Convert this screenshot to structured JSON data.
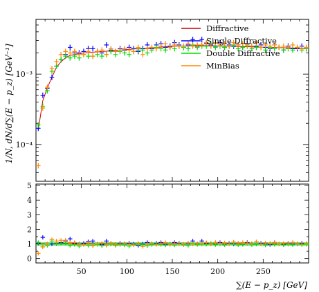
{
  "chart_data": [
    {
      "type": "scatter",
      "panel": "main",
      "ylabel": "1/N, dN/d∑(E − p_z) [GeV⁻¹]",
      "yscale": "log",
      "ylim": [
        3e-05,
        0.006
      ],
      "xlim": [
        0,
        300
      ],
      "ytick_labels": [
        "10⁻⁴",
        "10⁻³"
      ],
      "legend_position": "top-right",
      "series": [
        {
          "name": "Diffractive",
          "color": "#cc0000",
          "x": [
            2.5,
            7.5,
            12.5,
            17.5,
            22.5,
            27.5,
            32.5,
            37.5,
            42.5,
            47.5,
            52.5,
            57.5,
            62.5,
            67.5,
            72.5,
            77.5,
            82.5,
            87.5,
            92.5,
            97.5,
            102.5,
            107.5,
            112.5,
            117.5,
            122.5,
            127.5,
            132.5,
            137.5,
            142.5,
            147.5,
            152.5,
            157.5,
            162.5,
            167.5,
            172.5,
            177.5,
            182.5,
            187.5,
            192.5,
            197.5,
            202.5,
            207.5,
            212.5,
            217.5,
            222.5,
            227.5,
            232.5,
            237.5,
            242.5,
            247.5,
            252.5,
            257.5,
            262.5,
            267.5,
            272.5,
            277.5,
            282.5,
            287.5,
            292.5,
            297.5
          ],
          "y": [
            0.00016,
            0.00042,
            0.00064,
            0.0009,
            0.00125,
            0.0015,
            0.0017,
            0.00185,
            0.0019,
            0.00195,
            0.002,
            0.00202,
            0.00205,
            0.00207,
            0.0021,
            0.00212,
            0.00215,
            0.00218,
            0.0022,
            0.00222,
            0.00225,
            0.00228,
            0.0023,
            0.00232,
            0.00235,
            0.00237,
            0.0024,
            0.00242,
            0.00245,
            0.00247,
            0.0025,
            0.0025,
            0.00252,
            0.00252,
            0.00253,
            0.00253,
            0.00254,
            0.00254,
            0.00253,
            0.00252,
            0.00251,
            0.0025,
            0.00249,
            0.00248,
            0.00247,
            0.00246,
            0.00245,
            0.00244,
            0.00243,
            0.00242,
            0.00241,
            0.0024,
            0.00239,
            0.00238,
            0.00237,
            0.00236,
            0.00235,
            0.00234,
            0.00233,
            0.00232
          ]
        },
        {
          "name": "Single Diffractive",
          "color": "#0000ff",
          "x": [
            2.5,
            7.5,
            12.5,
            17.5,
            22.5,
            27.5,
            32.5,
            37.5,
            42.5,
            47.5,
            52.5,
            57.5,
            62.5,
            67.5,
            72.5,
            77.5,
            82.5,
            87.5,
            92.5,
            97.5,
            102.5,
            107.5,
            112.5,
            117.5,
            122.5,
            127.5,
            132.5,
            137.5,
            142.5,
            147.5,
            152.5,
            157.5,
            162.5,
            167.5,
            172.5,
            177.5,
            182.5,
            187.5,
            192.5,
            197.5,
            202.5,
            207.5,
            212.5,
            217.5,
            222.5,
            227.5,
            232.5,
            237.5,
            242.5,
            247.5,
            252.5,
            257.5,
            262.5,
            267.5,
            272.5,
            277.5,
            282.5,
            287.5,
            292.5,
            297.5
          ],
          "y": [
            0.00017,
            0.0005,
            0.00063,
            0.0009,
            0.0013,
            0.0016,
            0.0019,
            0.0024,
            0.002,
            0.002,
            0.0021,
            0.0023,
            0.0023,
            0.0021,
            0.002,
            0.0026,
            0.0022,
            0.0021,
            0.0023,
            0.0022,
            0.0024,
            0.0023,
            0.0021,
            0.0023,
            0.0026,
            0.0023,
            0.0026,
            0.0027,
            0.0024,
            0.0025,
            0.0028,
            0.0026,
            0.0024,
            0.0026,
            0.0031,
            0.0025,
            0.0031,
            0.0027,
            0.0026,
            0.0025,
            0.0028,
            0.0024,
            0.0026,
            0.0025,
            0.0026,
            0.0024,
            0.0027,
            0.0025,
            0.0025,
            0.0026,
            0.0024,
            0.0023,
            0.0026,
            0.0024,
            0.0022,
            0.0025,
            0.0023,
            0.0023,
            0.0025,
            0.0023
          ]
        },
        {
          "name": "Double Diffractive",
          "color": "#00dd00",
          "x": [
            2.5,
            7.5,
            12.5,
            17.5,
            22.5,
            27.5,
            32.5,
            37.5,
            42.5,
            47.5,
            52.5,
            57.5,
            62.5,
            67.5,
            72.5,
            77.5,
            82.5,
            87.5,
            92.5,
            97.5,
            102.5,
            107.5,
            112.5,
            117.5,
            122.5,
            127.5,
            132.5,
            137.5,
            142.5,
            147.5,
            152.5,
            157.5,
            162.5,
            167.5,
            172.5,
            177.5,
            182.5,
            187.5,
            192.5,
            197.5,
            202.5,
            207.5,
            212.5,
            217.5,
            222.5,
            227.5,
            232.5,
            237.5,
            242.5,
            247.5,
            252.5,
            257.5,
            262.5,
            267.5,
            272.5,
            277.5,
            282.5,
            287.5,
            292.5,
            297.5
          ],
          "y": [
            0.00019,
            0.00035,
            0.00058,
            0.0011,
            0.0013,
            0.0016,
            0.0018,
            0.0017,
            0.0018,
            0.0017,
            0.0019,
            0.0018,
            0.0018,
            0.0019,
            0.0018,
            0.0019,
            0.0021,
            0.0019,
            0.0021,
            0.002,
            0.0019,
            0.0021,
            0.0022,
            0.0022,
            0.002,
            0.0022,
            0.0024,
            0.0023,
            0.0022,
            0.0024,
            0.0023,
            0.0025,
            0.0024,
            0.0023,
            0.0026,
            0.0024,
            0.0025,
            0.0025,
            0.0027,
            0.0024,
            0.0025,
            0.0024,
            0.0025,
            0.0026,
            0.0023,
            0.0024,
            0.0025,
            0.0023,
            0.0024,
            0.0024,
            0.0022,
            0.0024,
            0.0023,
            0.0024,
            0.0022,
            0.0023,
            0.0022,
            0.0024,
            0.0022,
            0.0023
          ]
        },
        {
          "name": "MinBias",
          "color": "#ff8800",
          "x": [
            2.5,
            7.5,
            12.5,
            17.5,
            22.5,
            27.5,
            32.5,
            37.5,
            42.5,
            47.5,
            52.5,
            57.5,
            62.5,
            67.5,
            72.5,
            77.5,
            82.5,
            87.5,
            92.5,
            97.5,
            102.5,
            107.5,
            112.5,
            117.5,
            122.5,
            127.5,
            132.5,
            137.5,
            142.5,
            147.5,
            152.5,
            157.5,
            162.5,
            167.5,
            172.5,
            177.5,
            182.5,
            187.5,
            192.5,
            197.5,
            202.5,
            207.5,
            212.5,
            217.5,
            222.5,
            227.5,
            232.5,
            237.5,
            242.5,
            247.5,
            252.5,
            257.5,
            262.5,
            267.5,
            272.5,
            277.5,
            282.5,
            287.5,
            292.5,
            297.5
          ],
          "y": [
            5e-05,
            0.00033,
            0.00065,
            0.0012,
            0.0015,
            0.0019,
            0.0021,
            0.002,
            0.0021,
            0.0019,
            0.0019,
            0.0021,
            0.0018,
            0.0021,
            0.0022,
            0.0019,
            0.0023,
            0.0021,
            0.0022,
            0.0023,
            0.0022,
            0.0021,
            0.0024,
            0.0019,
            0.0023,
            0.0024,
            0.0023,
            0.0025,
            0.0027,
            0.0024,
            0.0026,
            0.0025,
            0.0025,
            0.0027,
            0.0025,
            0.0026,
            0.0026,
            0.0028,
            0.0025,
            0.0028,
            0.0026,
            0.0027,
            0.0025,
            0.0028,
            0.0026,
            0.0027,
            0.0026,
            0.0025,
            0.0028,
            0.0024,
            0.0026,
            0.0025,
            0.0026,
            0.0024,
            0.0025,
            0.0024,
            0.0026,
            0.0024,
            0.0023,
            0.0024
          ]
        }
      ]
    },
    {
      "type": "scatter",
      "panel": "ratio",
      "xlabel": "∑(E − p_z) [GeV]",
      "xlim": [
        0,
        300
      ],
      "ylim": [
        -0.3,
        5.1
      ],
      "x_ticks": [
        50,
        100,
        150,
        200,
        250
      ],
      "y_ticks": [
        0,
        1,
        2,
        3,
        4,
        5
      ],
      "reference_value": 1,
      "band_color": "#00dd00",
      "series": [
        {
          "name": "Single Diffractive",
          "color": "#0000ff",
          "x": [
            2.5,
            7.5,
            12.5,
            17.5,
            22.5,
            27.5,
            32.5,
            37.5,
            42.5,
            47.5,
            52.5,
            57.5,
            62.5,
            67.5,
            72.5,
            77.5,
            82.5,
            87.5,
            92.5,
            97.5,
            102.5,
            107.5,
            112.5,
            117.5,
            122.5,
            127.5,
            132.5,
            137.5,
            142.5,
            147.5,
            152.5,
            157.5,
            162.5,
            167.5,
            172.5,
            177.5,
            182.5,
            187.5,
            192.5,
            197.5,
            202.5,
            207.5,
            212.5,
            217.5,
            222.5,
            227.5,
            232.5,
            237.5,
            242.5,
            247.5,
            252.5,
            257.5,
            262.5,
            267.5,
            272.5,
            277.5,
            282.5,
            287.5,
            292.5,
            297.5
          ],
          "y": [
            1.05,
            1.45,
            1.0,
            1.0,
            1.03,
            1.1,
            1.2,
            1.35,
            1.05,
            1.0,
            1.05,
            1.15,
            1.2,
            1.0,
            0.95,
            1.2,
            1.0,
            0.95,
            1.05,
            1.0,
            1.05,
            1.0,
            0.9,
            1.0,
            1.1,
            1.0,
            1.05,
            1.1,
            0.98,
            1.0,
            1.1,
            1.05,
            0.95,
            1.0,
            1.2,
            1.0,
            1.2,
            1.05,
            1.0,
            0.98,
            1.1,
            0.95,
            1.05,
            1.0,
            1.05,
            0.97,
            1.1,
            1.02,
            1.0,
            1.05,
            1.0,
            0.95,
            1.1,
            1.0,
            0.95,
            1.05,
            1.0,
            1.0,
            1.05,
            1.0
          ]
        },
        {
          "name": "Double Diffractive",
          "color": "#00dd00",
          "x": [
            2.5,
            7.5,
            12.5,
            17.5,
            22.5,
            27.5,
            32.5,
            37.5,
            42.5,
            47.5,
            52.5,
            57.5,
            62.5,
            67.5,
            72.5,
            77.5,
            82.5,
            87.5,
            92.5,
            97.5,
            102.5,
            107.5,
            112.5,
            117.5,
            122.5,
            127.5,
            132.5,
            137.5,
            142.5,
            147.5,
            152.5,
            157.5,
            162.5,
            167.5,
            172.5,
            177.5,
            182.5,
            187.5,
            192.5,
            197.5,
            202.5,
            207.5,
            212.5,
            217.5,
            222.5,
            227.5,
            232.5,
            237.5,
            242.5,
            247.5,
            252.5,
            257.5,
            262.5,
            267.5,
            272.5,
            277.5,
            282.5,
            287.5,
            292.5,
            297.5
          ],
          "y": [
            1.1,
            0.8,
            0.9,
            1.2,
            1.05,
            1.05,
            1.05,
            0.9,
            0.95,
            0.85,
            0.95,
            0.9,
            0.9,
            0.95,
            0.88,
            0.92,
            1.0,
            0.9,
            0.95,
            0.92,
            0.85,
            0.95,
            0.98,
            0.95,
            0.88,
            0.95,
            1.0,
            0.95,
            0.92,
            0.98,
            0.92,
            1.0,
            0.95,
            0.9,
            1.02,
            0.95,
            0.98,
            0.98,
            1.05,
            0.95,
            1.0,
            0.95,
            1.0,
            1.05,
            0.93,
            0.97,
            1.02,
            0.94,
            0.98,
            0.99,
            0.92,
            1.0,
            0.96,
            1.0,
            0.93,
            0.97,
            0.94,
            1.02,
            0.95,
            0.98
          ]
        },
        {
          "name": "MinBias",
          "color": "#ff8800",
          "x": [
            2.5,
            7.5,
            12.5,
            17.5,
            22.5,
            27.5,
            32.5,
            37.5,
            42.5,
            47.5,
            52.5,
            57.5,
            62.5,
            67.5,
            72.5,
            77.5,
            82.5,
            87.5,
            92.5,
            97.5,
            102.5,
            107.5,
            112.5,
            117.5,
            122.5,
            127.5,
            132.5,
            137.5,
            142.5,
            147.5,
            152.5,
            157.5,
            162.5,
            167.5,
            172.5,
            177.5,
            182.5,
            187.5,
            192.5,
            197.5,
            202.5,
            207.5,
            212.5,
            217.5,
            222.5,
            227.5,
            232.5,
            237.5,
            242.5,
            247.5,
            252.5,
            257.5,
            262.5,
            267.5,
            272.5,
            277.5,
            282.5,
            287.5,
            292.5,
            297.5
          ],
          "y": [
            0.35,
            0.8,
            1.0,
            1.3,
            1.2,
            1.25,
            1.25,
            1.1,
            1.1,
            0.97,
            0.95,
            1.05,
            0.88,
            1.0,
            1.05,
            0.9,
            1.07,
            0.96,
            1.0,
            1.03,
            0.98,
            0.92,
            1.05,
            0.82,
            0.98,
            1.02,
            0.96,
            1.03,
            1.1,
            0.97,
            1.04,
            1.0,
            0.99,
            1.07,
            0.99,
            1.03,
            1.02,
            1.1,
            0.99,
            1.11,
            1.04,
            1.08,
            1.0,
            1.13,
            1.05,
            1.1,
            1.06,
            1.02,
            1.15,
            0.99,
            1.08,
            1.04,
            1.09,
            1.01,
            1.05,
            1.02,
            1.11,
            1.03,
            0.99,
            1.03
          ]
        }
      ]
    }
  ]
}
